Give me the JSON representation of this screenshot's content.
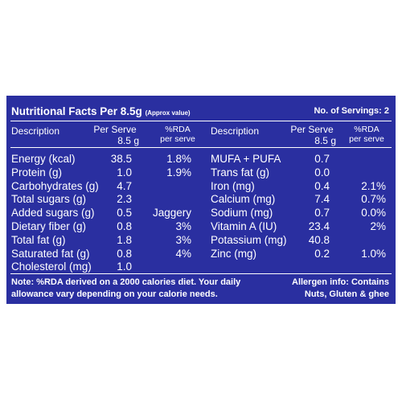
{
  "title": "Nutritional Facts Per 8.5g",
  "title_note": "(Approx value)",
  "servings": "No. of Servings: 2",
  "headers": {
    "description": "Description",
    "per_serve_line1": "Per Serve",
    "per_serve_line2": "8.5 g",
    "rda_line1": "%RDA",
    "rda_line2": "per serve"
  },
  "left_rows": [
    {
      "name": "Energy (kcal)",
      "value": "38.5",
      "rda": "1.8%"
    },
    {
      "name": "Protein (g)",
      "value": "1.0",
      "rda": "1.9%"
    },
    {
      "name": "Carbohydrates (g)",
      "value": "4.7",
      "rda": ""
    },
    {
      "name": "Total sugars (g)",
      "value": "2.3",
      "rda": ""
    },
    {
      "name": "Added sugars (g)",
      "value": "0.5",
      "rda": "Jaggery"
    },
    {
      "name": "Dietary fiber (g)",
      "value": "0.8",
      "rda": "3%"
    },
    {
      "name": "Total fat (g)",
      "value": "1.8",
      "rda": "3%"
    },
    {
      "name": "Saturated fat (g)",
      "value": "0.8",
      "rda": "4%"
    },
    {
      "name": "Cholesterol (mg)",
      "value": "1.0",
      "rda": ""
    }
  ],
  "right_rows": [
    {
      "name": "MUFA + PUFA",
      "value": "0.7",
      "rda": ""
    },
    {
      "name": "Trans fat (g)",
      "value": "0.0",
      "rda": ""
    },
    {
      "name": "Iron (mg)",
      "value": "0.4",
      "rda": "2.1%"
    },
    {
      "name": "Calcium (mg)",
      "value": "7.4",
      "rda": "0.7%"
    },
    {
      "name": "Sodium (mg)",
      "value": "0.7",
      "rda": "0.0%"
    },
    {
      "name": "Vitamin A (IU)",
      "value": "23.4",
      "rda": "2%"
    },
    {
      "name": "Potassium (mg)",
      "value": "40.8",
      "rda": ""
    },
    {
      "name": "Zinc (mg)",
      "value": "0.2",
      "rda": "1.0%"
    }
  ],
  "note_line1": "Note: %RDA derived on a 2000 calories diet. Your daily",
  "note_line2": "allowance vary depending on your calorie needs.",
  "allergen_line1": "Allergen info: Contains",
  "allergen_line2": "Nuts, Gluten & ghee",
  "colors": {
    "panel": "#2a2fa0",
    "text": "#ffffff"
  }
}
